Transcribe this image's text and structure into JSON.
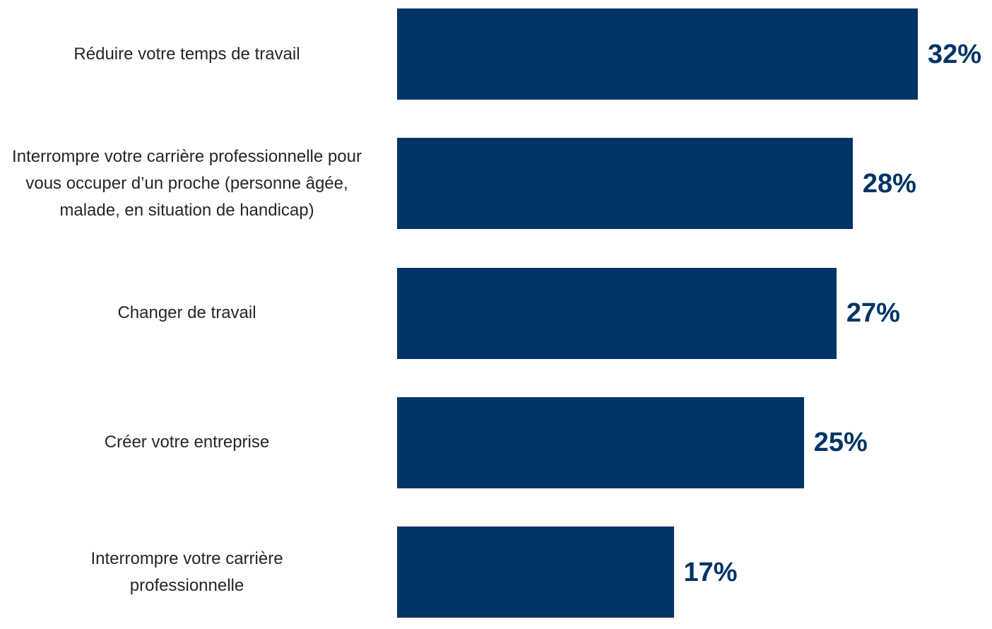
{
  "chart_data": {
    "type": "bar",
    "orientation": "horizontal",
    "categories": [
      "Réduire votre temps de travail",
      "Interrompre votre carrière professionnelle pour vous occuper d’un proche (personne âgée, malade, en situation de handicap)",
      "Changer de travail",
      "Créer votre entreprise",
      "Interrompre votre carrière professionnelle"
    ],
    "values": [
      32,
      28,
      27,
      25,
      17
    ],
    "value_labels": [
      "32%",
      "28%",
      "27%",
      "25%",
      "17%"
    ],
    "color": "#003466"
  }
}
